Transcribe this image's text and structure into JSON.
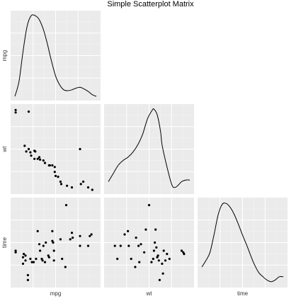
{
  "chart_data": {
    "type": "scatter",
    "title": "Simple Scatterplot Matrix",
    "variables": [
      "mpg",
      "wt",
      "time"
    ],
    "layout": "lower-triangle",
    "diagonal": "density",
    "grid": true,
    "ranges": {
      "mpg": [
        0,
        1
      ],
      "wt": [
        0,
        1
      ],
      "time": [
        0,
        1
      ],
      "density": [
        0,
        1
      ]
    },
    "panels": {
      "mpg_density": {
        "x": [
          0.0,
          0.05,
          0.1,
          0.15,
          0.2,
          0.25,
          0.3,
          0.35,
          0.4,
          0.45,
          0.5,
          0.55,
          0.6,
          0.65,
          0.7,
          0.75,
          0.8,
          0.85,
          0.9,
          0.95,
          1.0
        ],
        "y": [
          0.0,
          0.18,
          0.55,
          0.86,
          0.99,
          0.99,
          0.94,
          0.82,
          0.64,
          0.43,
          0.25,
          0.14,
          0.08,
          0.07,
          0.08,
          0.1,
          0.11,
          0.09,
          0.06,
          0.02,
          0.0
        ]
      },
      "wt_density": {
        "x": [
          0.0,
          0.06,
          0.12,
          0.18,
          0.24,
          0.3,
          0.36,
          0.42,
          0.48,
          0.54,
          0.56,
          0.6,
          0.64,
          0.66,
          0.72,
          0.78,
          0.82,
          0.86,
          0.9,
          0.95,
          1.0
        ],
        "y": [
          0.1,
          0.2,
          0.3,
          0.36,
          0.4,
          0.46,
          0.55,
          0.68,
          0.87,
          0.98,
          0.99,
          0.92,
          0.72,
          0.55,
          0.28,
          0.06,
          0.03,
          0.06,
          0.1,
          0.12,
          0.12
        ]
      },
      "time_density": {
        "x": [
          0.0,
          0.05,
          0.1,
          0.15,
          0.2,
          0.25,
          0.3,
          0.35,
          0.4,
          0.45,
          0.5,
          0.55,
          0.6,
          0.65,
          0.7,
          0.75,
          0.8,
          0.85,
          0.9,
          0.95,
          1.0
        ],
        "y": [
          0.2,
          0.28,
          0.38,
          0.6,
          0.84,
          0.97,
          0.98,
          0.93,
          0.84,
          0.72,
          0.59,
          0.47,
          0.34,
          0.22,
          0.13,
          0.08,
          0.04,
          0.02,
          0.04,
          0.08,
          0.08
        ]
      },
      "wt_vs_mpg": {
        "x": [
          0.01,
          0.01,
          0.17,
          0.12,
          0.24,
          0.17,
          0.14,
          0.19,
          0.3,
          0.2,
          0.25,
          0.28,
          0.24,
          0.31,
          0.35,
          0.37,
          0.42,
          0.43,
          0.46,
          0.49,
          0.49,
          0.5,
          0.53,
          0.56,
          0.57,
          0.64,
          0.7,
          0.8,
          0.81,
          0.84,
          0.9,
          0.95
        ],
        "y": [
          0.98,
          0.95,
          0.96,
          0.54,
          0.48,
          0.5,
          0.47,
          0.46,
          0.4,
          0.42,
          0.47,
          0.38,
          0.38,
          0.37,
          0.36,
          0.33,
          0.3,
          0.3,
          0.3,
          0.28,
          0.22,
          0.17,
          0.16,
          0.1,
          0.07,
          0.05,
          0.03,
          0.5,
          0.07,
          0.1,
          0.03,
          0.0
        ]
      },
      "time_vs_mpg": {
        "x": [
          0.01,
          0.01,
          0.11,
          0.13,
          0.13,
          0.19,
          0.21,
          0.23,
          0.26,
          0.28,
          0.3,
          0.31,
          0.33,
          0.34,
          0.35,
          0.37,
          0.38,
          0.41,
          0.42,
          0.46,
          0.46,
          0.47,
          0.48,
          0.48,
          0.56,
          0.58,
          0.63,
          0.68,
          0.7,
          0.71,
          0.8,
          0.8,
          0.9,
          0.92,
          0.94,
          0.62,
          0.1,
          0.16,
          0.1,
          0.16
        ],
        "y": [
          0.4,
          0.38,
          0.36,
          0.34,
          0.28,
          0.3,
          0.26,
          0.26,
          0.3,
          0.64,
          0.48,
          0.4,
          0.3,
          0.28,
          0.46,
          0.26,
          0.5,
          0.34,
          0.32,
          0.64,
          0.52,
          0.5,
          0.28,
          0.4,
          0.54,
          0.3,
          0.96,
          0.54,
          0.62,
          0.56,
          0.58,
          0.46,
          0.46,
          0.58,
          0.6,
          0.2,
          0.24,
          0.1,
          0.32,
          0.04
        ]
      },
      "time_vs_wt": {
        "x": [
          0.08,
          0.11,
          0.15,
          0.2,
          0.24,
          0.25,
          0.28,
          0.33,
          0.34,
          0.37,
          0.38,
          0.4,
          0.44,
          0.46,
          0.5,
          0.53,
          0.55,
          0.56,
          0.57,
          0.58,
          0.59,
          0.6,
          0.61,
          0.62,
          0.66,
          0.68,
          0.7,
          0.72,
          0.75,
          0.9,
          0.92,
          0.93,
          0.63,
          0.67
        ],
        "y": [
          0.46,
          0.3,
          0.46,
          0.6,
          0.64,
          0.46,
          0.3,
          0.2,
          0.56,
          0.46,
          0.26,
          0.48,
          0.38,
          0.66,
          0.96,
          0.26,
          0.3,
          0.4,
          0.5,
          0.66,
          0.44,
          0.32,
          0.34,
          0.28,
          0.24,
          0.4,
          0.28,
          0.36,
          0.3,
          0.4,
          0.38,
          0.36,
          0.04,
          0.12
        ]
      }
    }
  }
}
